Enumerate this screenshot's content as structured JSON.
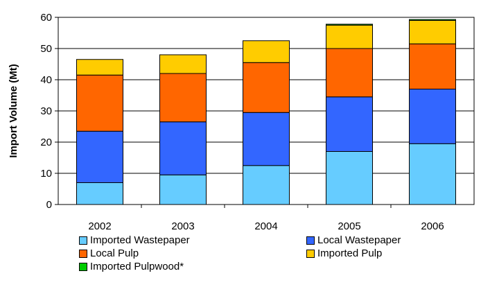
{
  "chart_data": {
    "type": "bar",
    "stacked": true,
    "title": "",
    "xlabel": "",
    "ylabel": "Import Volume (Mt)",
    "ylim": [
      0,
      60
    ],
    "yticks": [
      "0",
      "10",
      "20",
      "30",
      "40",
      "50",
      "60"
    ],
    "grid": true,
    "legend_position": "bottom",
    "categories": [
      "2002",
      "2003",
      "2004",
      "2005",
      "2006"
    ],
    "series": [
      {
        "name": "Imported Wastepaper",
        "color": "#66ccff",
        "values": [
          7,
          9.5,
          12.5,
          17,
          19.5
        ]
      },
      {
        "name": "Local Wastepaper",
        "color": "#3366ff",
        "values": [
          16.5,
          17,
          17,
          17.5,
          17.5
        ]
      },
      {
        "name": "Local Pulp",
        "color": "#ff6600",
        "values": [
          18,
          15.5,
          16,
          15.5,
          14.5
        ]
      },
      {
        "name": "Imported Pulp",
        "color": "#ffcc00",
        "values": [
          5,
          6,
          7,
          7.5,
          7.5
        ]
      },
      {
        "name": "Imported Pulpwood*",
        "color": "#00cc00",
        "values": [
          0,
          0,
          0,
          0.3,
          0.3
        ]
      }
    ]
  }
}
